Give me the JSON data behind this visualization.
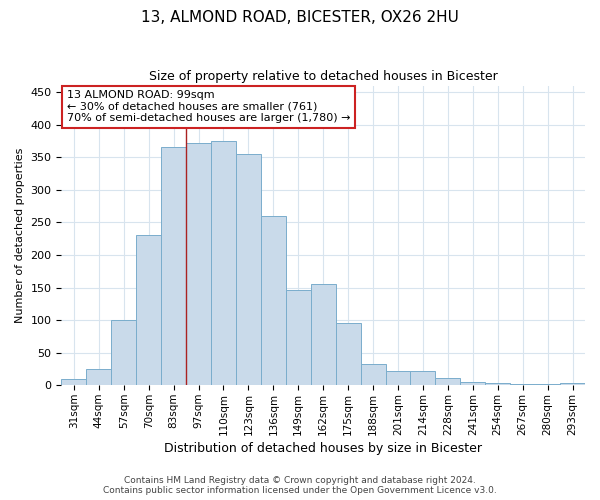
{
  "title1": "13, ALMOND ROAD, BICESTER, OX26 2HU",
  "title2": "Size of property relative to detached houses in Bicester",
  "xlabel": "Distribution of detached houses by size in Bicester",
  "ylabel": "Number of detached properties",
  "footer1": "Contains HM Land Registry data © Crown copyright and database right 2024.",
  "footer2": "Contains public sector information licensed under the Open Government Licence v3.0.",
  "annotation_line1": "13 ALMOND ROAD: 99sqm",
  "annotation_line2": "← 30% of detached houses are smaller (761)",
  "annotation_line3": "70% of semi-detached houses are larger (1,780) →",
  "bar_categories": [
    "31sqm",
    "44sqm",
    "57sqm",
    "70sqm",
    "83sqm",
    "97sqm",
    "110sqm",
    "123sqm",
    "136sqm",
    "149sqm",
    "162sqm",
    "175sqm",
    "188sqm",
    "201sqm",
    "214sqm",
    "228sqm",
    "241sqm",
    "254sqm",
    "267sqm",
    "280sqm",
    "293sqm"
  ],
  "bar_values": [
    10,
    25,
    100,
    230,
    365,
    372,
    375,
    355,
    260,
    147,
    155,
    95,
    33,
    22,
    22,
    11,
    5,
    3,
    2,
    2,
    3
  ],
  "bar_color": "#c9daea",
  "bar_edge_color": "#7aadcc",
  "vline_color": "#aa2222",
  "vline_x_idx": 5,
  "annotation_box_facecolor": "#ffffff",
  "annotation_box_edgecolor": "#cc2222",
  "bg_color": "#ffffff",
  "grid_color": "#d8e4ee",
  "ylim": [
    0,
    460
  ],
  "yticks": [
    0,
    50,
    100,
    150,
    200,
    250,
    300,
    350,
    400,
    450
  ],
  "title1_fontsize": 11,
  "title2_fontsize": 9,
  "ylabel_fontsize": 8,
  "xlabel_fontsize": 9,
  "ytick_fontsize": 8,
  "xtick_fontsize": 7.5,
  "footer_fontsize": 6.5,
  "annotation_fontsize": 8
}
